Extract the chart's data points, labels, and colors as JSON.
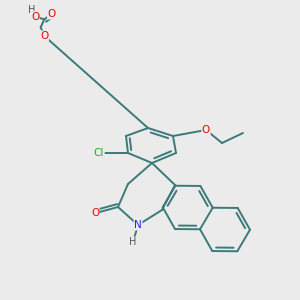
{
  "background_color": "#ebebeb",
  "bond_color": "#3a7a7a",
  "bond_width": 1.4,
  "atom_colors": {
    "O": "#ee0000",
    "N": "#2222ee",
    "Cl": "#22aa22",
    "H": "#555555"
  },
  "figsize": [
    3.0,
    3.0
  ],
  "dpi": 100
}
